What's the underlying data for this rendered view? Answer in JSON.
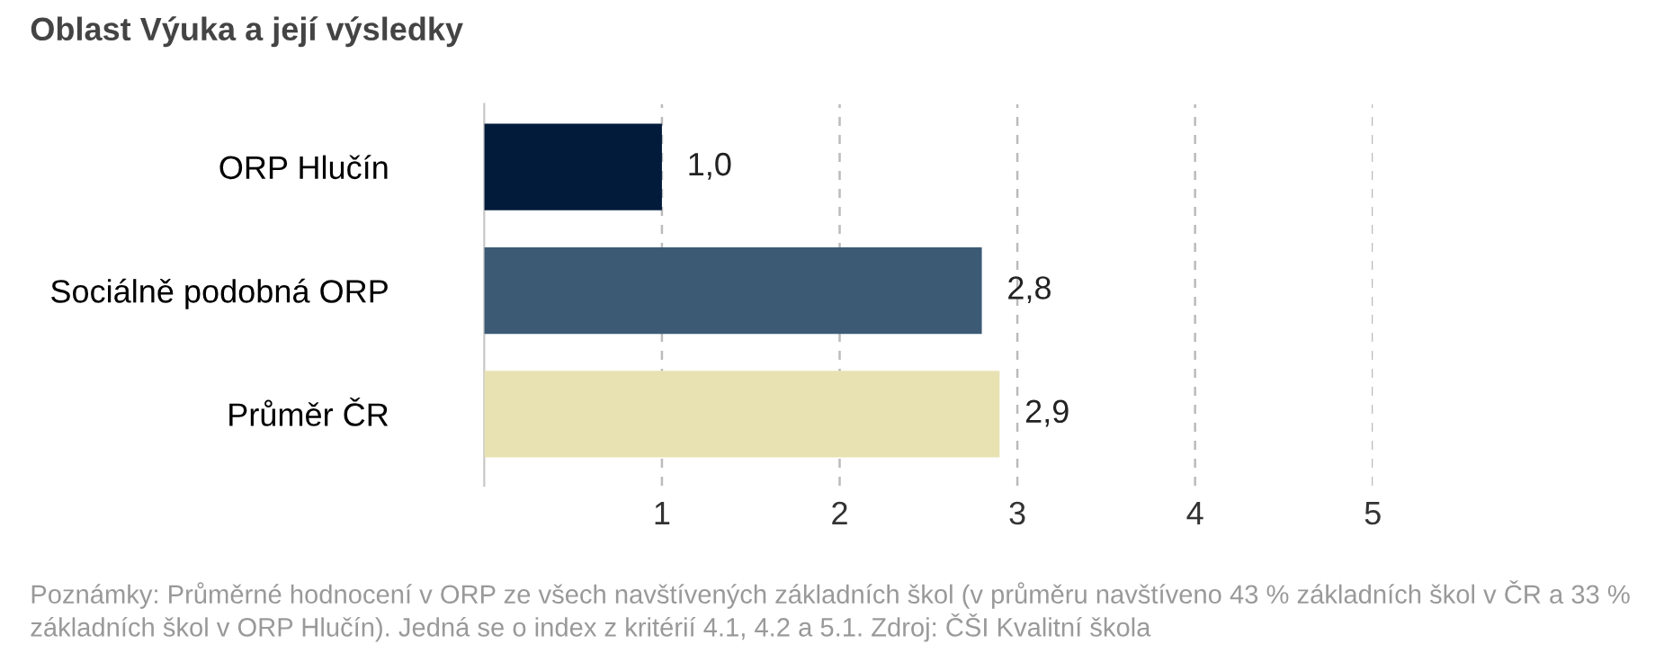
{
  "chart_data": {
    "type": "bar",
    "orientation": "horizontal",
    "title": "Oblast Výuka a její výsledky",
    "categories": [
      "ORP Hlučín",
      "Sociálně podobná ORP",
      "Průměr ČR"
    ],
    "values": [
      1.0,
      2.8,
      2.9
    ],
    "colors": [
      "#031b3b",
      "#3c5a74",
      "#e8e2b3"
    ],
    "value_labels": [
      "1,0",
      "2,8",
      "2,9"
    ],
    "xlim": [
      0,
      5
    ],
    "xticks": [
      1,
      2,
      3,
      4,
      5
    ],
    "grid": "x",
    "annotations": [
      "Poznámky: Průměrné hodnocení v ORP ze všech navštívených základních škol (v průměru navštíveno 43 % základních škol v ČR a 33 % základních škol v ORP Hlučín). Jedná se o index z kritérií 4.1, 4.2 a 5.1. Zdroj: ČŠI Kvalitní škola"
    ]
  }
}
